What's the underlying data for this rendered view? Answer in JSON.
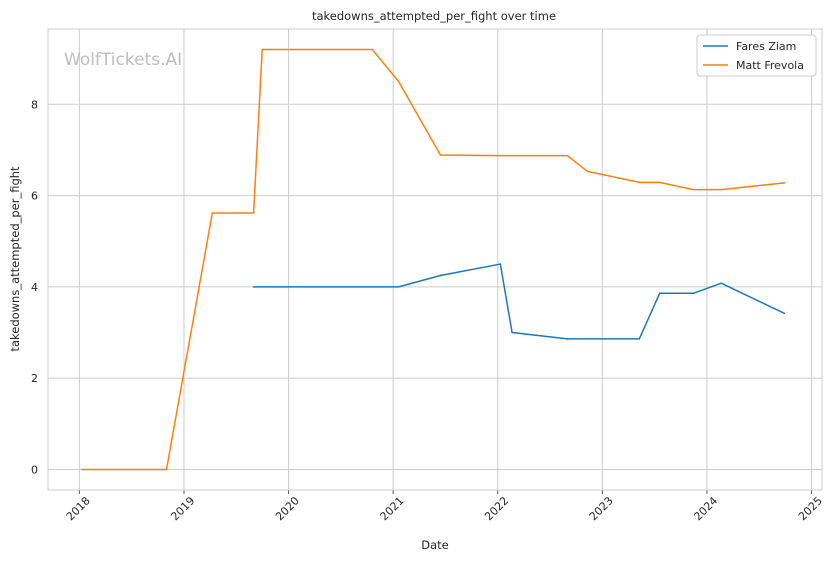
{
  "chart_data": {
    "type": "line",
    "title": "takedowns_attempted_per_fight over time",
    "xlabel": "Date",
    "ylabel": "takedowns_attempted_per_fight",
    "watermark": "WolfTickets.AI",
    "xlim": [
      2017.7,
      2025.1
    ],
    "ylim": [
      -0.45,
      9.65
    ],
    "x_ticks": [
      "2018",
      "2019",
      "2020",
      "2021",
      "2022",
      "2023",
      "2024",
      "2025"
    ],
    "y_ticks": [
      "0",
      "2",
      "4",
      "6",
      "8"
    ],
    "grid": true,
    "legend_position": "top-right",
    "series": [
      {
        "name": "Fares Ziam",
        "color": "#1f77b4",
        "x": [
          "2019-09-01",
          "2021-01-20",
          "2021-06-15",
          "2022-01-10",
          "2022-02-20",
          "2022-09-01",
          "2023-05-10",
          "2023-07-20",
          "2023-11-15",
          "2024-02-20",
          "2024-09-28"
        ],
        "values": [
          4.0,
          4.0,
          4.25,
          4.5,
          3.0,
          2.86,
          2.86,
          3.86,
          3.86,
          4.08,
          3.42
        ]
      },
      {
        "name": "Matt Frevola",
        "color": "#ff7f0e",
        "x": [
          "2018-01-10",
          "2018-11-01",
          "2019-04-10",
          "2019-09-01",
          "2019-10-01",
          "2020-10-20",
          "2021-01-20",
          "2021-06-15",
          "2022-01-10",
          "2022-09-01",
          "2022-11-10",
          "2023-05-10",
          "2023-07-20",
          "2023-11-15",
          "2024-02-20",
          "2024-09-28"
        ],
        "values": [
          0.0,
          0.0,
          5.62,
          5.62,
          9.2,
          9.2,
          8.5,
          6.89,
          6.875,
          6.875,
          6.53,
          6.29,
          6.29,
          6.13,
          6.13,
          6.28
        ]
      }
    ]
  }
}
